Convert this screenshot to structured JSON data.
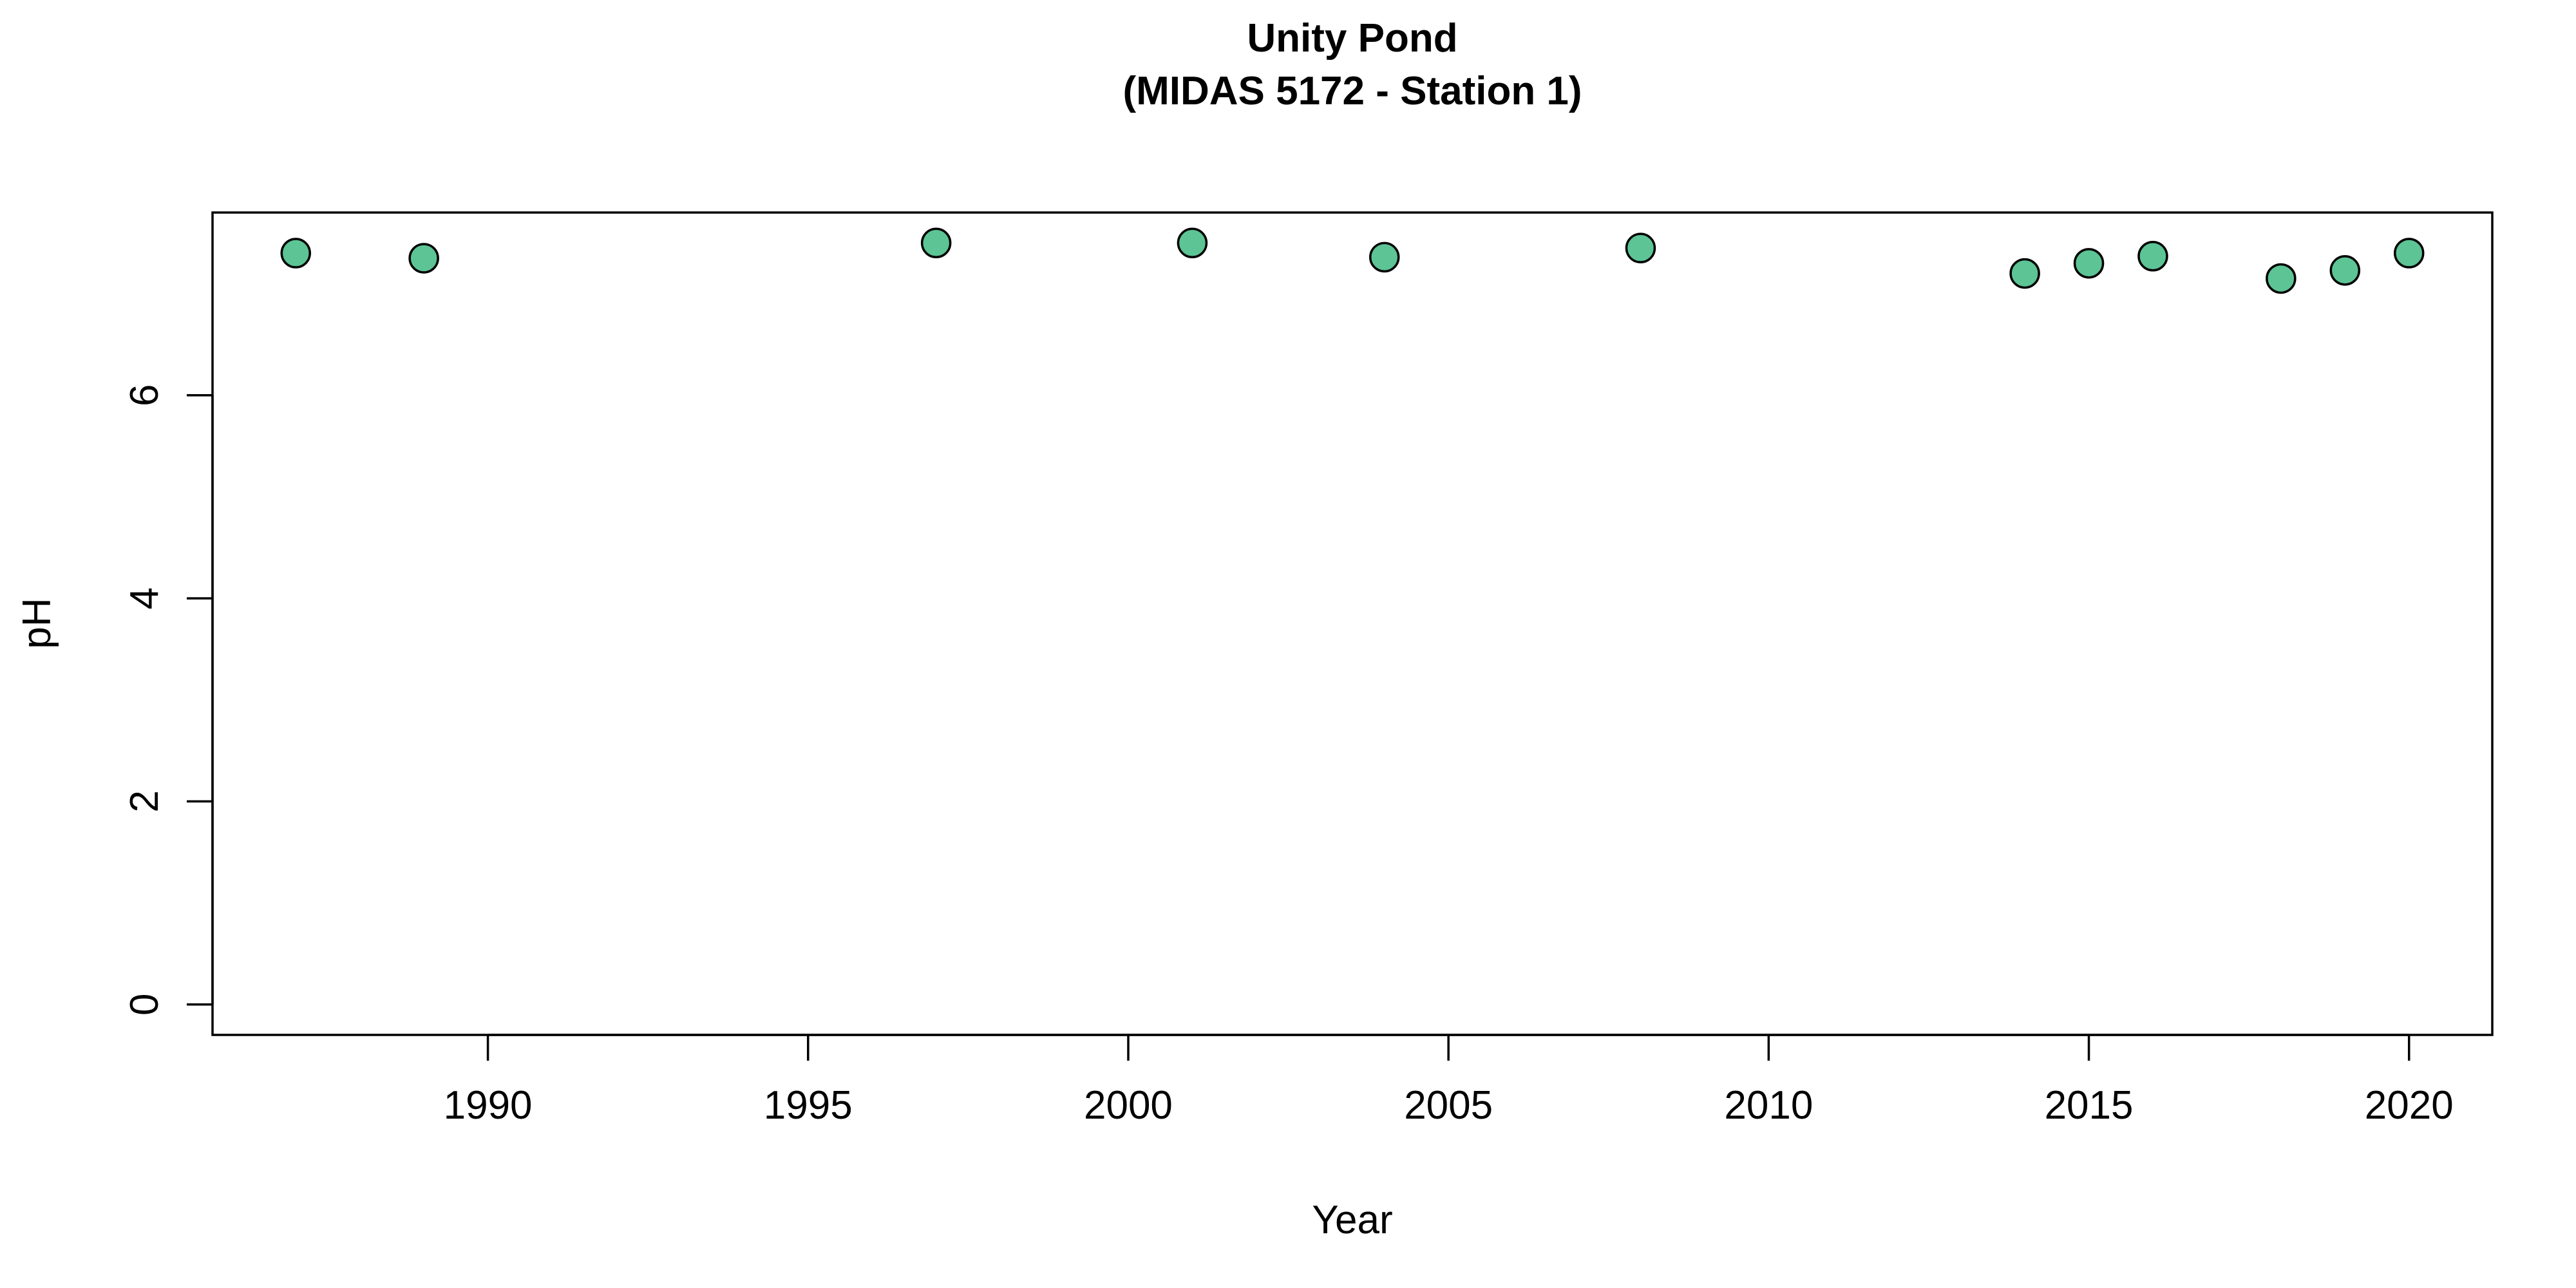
{
  "chart_data": {
    "type": "scatter",
    "title": "Unity Pond",
    "subtitle": "(MIDAS 5172 - Station 1)",
    "xlabel": "Year",
    "ylabel": "pH",
    "xlim": [
      1985.7,
      2021.3
    ],
    "ylim": [
      -0.3,
      7.8
    ],
    "xticks": [
      1990,
      1995,
      2000,
      2005,
      2010,
      2015,
      2020
    ],
    "yticks": [
      0,
      2,
      4,
      6
    ],
    "grid": false,
    "legend": "none",
    "point_color": "#5CC495",
    "points": [
      {
        "x": 1987,
        "y": 7.4
      },
      {
        "x": 1989,
        "y": 7.35
      },
      {
        "x": 1997,
        "y": 7.5
      },
      {
        "x": 2001,
        "y": 7.5
      },
      {
        "x": 2004,
        "y": 7.36
      },
      {
        "x": 2008,
        "y": 7.45
      },
      {
        "x": 2014,
        "y": 7.2
      },
      {
        "x": 2015,
        "y": 7.3
      },
      {
        "x": 2016,
        "y": 7.37
      },
      {
        "x": 2018,
        "y": 7.15
      },
      {
        "x": 2019,
        "y": 7.23
      },
      {
        "x": 2020,
        "y": 7.4
      }
    ]
  }
}
